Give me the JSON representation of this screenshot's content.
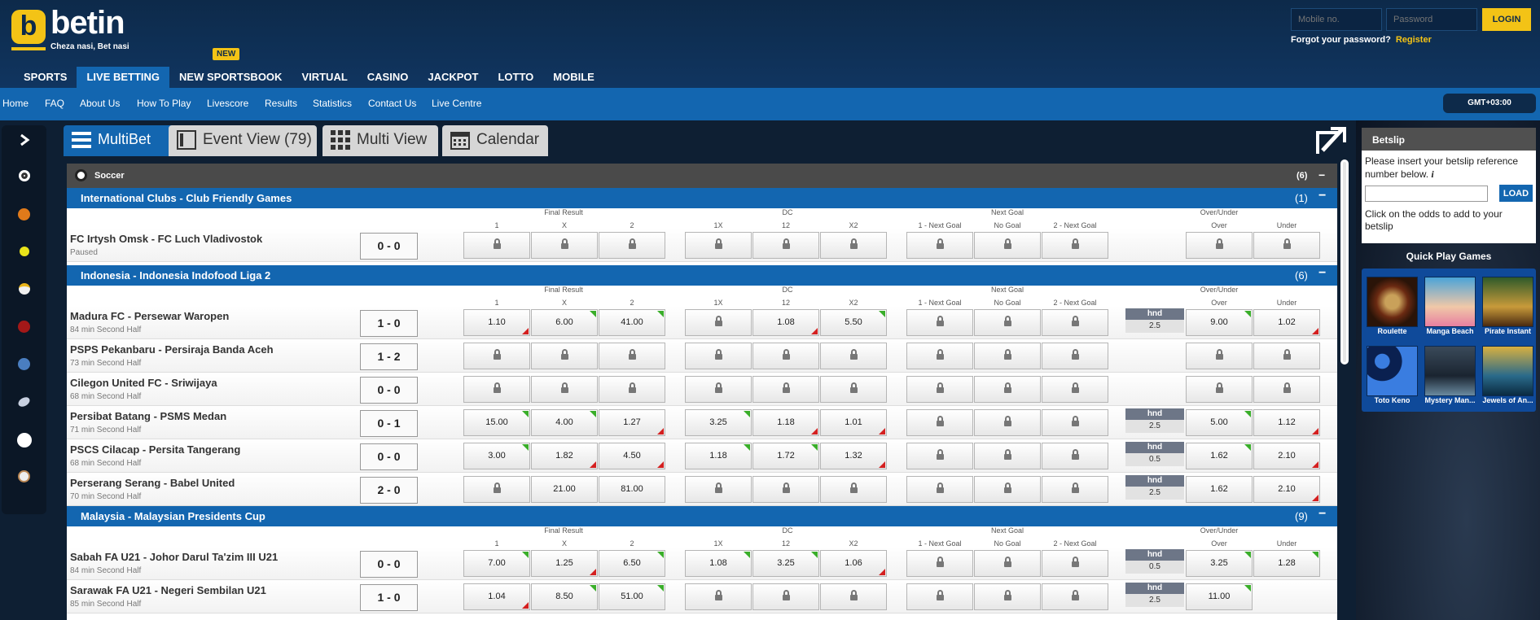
{
  "brand": {
    "name": "betin",
    "tagline": "Cheza nasi, Bet nasi",
    "new_badge": "NEW"
  },
  "main_nav": [
    "SPORTS",
    "LIVE BETTING",
    "NEW SPORTSBOOK",
    "VIRTUAL",
    "CASINO",
    "JACKPOT",
    "LOTTO",
    "MOBILE"
  ],
  "main_nav_active": "LIVE BETTING",
  "login": {
    "mobile_placeholder": "Mobile no.",
    "password_placeholder": "Password",
    "login_label": "LOGIN",
    "forgot": "Forgot your password?",
    "register": "Register"
  },
  "sub_nav": [
    "Home",
    "FAQ",
    "About Us",
    "How To Play",
    "Livescore",
    "Results",
    "Statistics",
    "Contact Us",
    "Live Centre"
  ],
  "timezone": "GMT+03:00",
  "tabs": [
    {
      "label": "MultiBet",
      "icon": "list-icon"
    },
    {
      "label": "Event View (79)",
      "icon": "panel-icon"
    },
    {
      "label": "Multi View",
      "icon": "grid-icon"
    },
    {
      "label": "Calendar",
      "icon": "calendar-icon"
    }
  ],
  "sidebar_sports": [
    "chevron-right-icon",
    "soccer-icon",
    "basketball-icon",
    "tennis-icon",
    "volleyball-icon",
    "cricket-icon",
    "handball-icon",
    "rugby-icon",
    "table-tennis-icon",
    "baseball-icon"
  ],
  "sport": {
    "name": "Soccer",
    "count": "(6)",
    "collapse": "−"
  },
  "market_headers": {
    "final_result": "Final Result",
    "dc": "DC",
    "next_goal": "Next Goal",
    "over_under": "Over/Under"
  },
  "selections": [
    "1",
    "X",
    "2",
    "1X",
    "12",
    "X2",
    "1 - Next Goal",
    "No Goal",
    "2 - Next Goal",
    "Over",
    "Under"
  ],
  "hnd_label": "hnd",
  "leagues": [
    {
      "title": "International Clubs - Club Friendly Games",
      "count": "(1)",
      "matches": [
        {
          "teams": "FC Irtysh Omsk - FC Luch Vladivostok",
          "status": "Paused",
          "score": "0 - 0",
          "odds": [
            "",
            "",
            "",
            "",
            "",
            "",
            "",
            "",
            "",
            "",
            ""
          ],
          "hnd": null
        }
      ]
    },
    {
      "title": "Indonesia - Indonesia Indofood Liga 2",
      "count": "(6)",
      "matches": [
        {
          "teams": "Madura FC - Persewar Waropen",
          "status": "84 min Second Half",
          "score": "1 - 0",
          "odds": [
            "1.10",
            "6.00",
            "41.00",
            "",
            "1.08",
            "5.50",
            "",
            "",
            "",
            "9.00",
            "1.02"
          ],
          "moves": [
            "dn",
            "up",
            "up",
            "",
            "dn",
            "up",
            "",
            "",
            "",
            "up",
            "dn"
          ],
          "hnd": "2.5"
        },
        {
          "teams": "PSPS Pekanbaru - Persiraja Banda Aceh",
          "status": "73 min Second Half",
          "score": "1 - 2",
          "odds": [
            "",
            "",
            "",
            "",
            "",
            "",
            "",
            "",
            "",
            "",
            ""
          ],
          "hnd": null
        },
        {
          "teams": "Cilegon United FC - Sriwijaya",
          "status": "68 min Second Half",
          "score": "0 - 0",
          "odds": [
            "",
            "",
            "",
            "",
            "",
            "",
            "",
            "",
            "",
            "",
            ""
          ],
          "hnd": null
        },
        {
          "teams": "Persibat Batang - PSMS Medan",
          "status": "71 min Second Half",
          "score": "0 - 1",
          "odds": [
            "15.00",
            "4.00",
            "1.27",
            "3.25",
            "1.18",
            "1.01",
            "",
            "",
            "",
            "5.00",
            "1.12"
          ],
          "moves": [
            "up",
            "up",
            "dn",
            "up",
            "dn",
            "dn",
            "",
            "",
            "",
            "up",
            "dn"
          ],
          "hnd": "2.5"
        },
        {
          "teams": "PSCS Cilacap - Persita Tangerang",
          "status": "68 min Second Half",
          "score": "0 - 0",
          "odds": [
            "3.00",
            "1.82",
            "4.50",
            "1.18",
            "1.72",
            "1.32",
            "",
            "",
            "",
            "1.62",
            "2.10"
          ],
          "moves": [
            "up",
            "dn",
            "dn",
            "up",
            "up",
            "dn",
            "",
            "",
            "",
            "up",
            "dn"
          ],
          "hnd": "0.5"
        },
        {
          "teams": "Perserang Serang - Babel United",
          "status": "70 min Second Half",
          "score": "2 - 0",
          "odds": [
            "",
            "21.00",
            "81.00",
            "",
            "",
            "",
            "",
            "",
            "",
            "1.62",
            "2.10"
          ],
          "moves": [
            "",
            "",
            "",
            "",
            "",
            "",
            "",
            "",
            "",
            "",
            "dn"
          ],
          "hnd": "2.5"
        }
      ]
    },
    {
      "title": "Malaysia - Malaysian Presidents Cup",
      "count": "(9)",
      "matches": [
        {
          "teams": "Sabah FA U21 - Johor Darul Ta'zim III U21",
          "status": "84 min Second Half",
          "score": "0 - 0",
          "odds": [
            "7.00",
            "1.25",
            "6.50",
            "1.08",
            "3.25",
            "1.06",
            "",
            "",
            "",
            "3.25",
            "1.28"
          ],
          "moves": [
            "up",
            "dn",
            "up",
            "up",
            "up",
            "dn",
            "",
            "",
            "",
            "up",
            "up"
          ],
          "hnd": "0.5"
        },
        {
          "teams": "Sarawak FA U21 - Negeri Sembilan U21",
          "status": "85 min Second Half",
          "score": "1 - 0",
          "odds": [
            "1.04",
            "8.50",
            "51.00",
            "",
            "",
            "",
            "",
            "",
            "",
            "11.00",
            null
          ],
          "moves": [
            "dn",
            "up",
            "up",
            "",
            "",
            "",
            "",
            "",
            "",
            "up",
            ""
          ],
          "hnd": "2.5"
        }
      ]
    }
  ],
  "betslip": {
    "title": "Betslip",
    "insert_text": "Please insert your betslip reference number below.",
    "info": "i",
    "load_label": "LOAD",
    "click_text": "Click on the odds to add to your betslip"
  },
  "quick_play": {
    "title": "Quick Play Games",
    "games": [
      "Roulette",
      "Manga Beach",
      "Pirate Instant",
      "Toto Keno",
      "Mystery Man...",
      "Jewels of An..."
    ]
  },
  "colors": {
    "nav_blue": "#1366b0",
    "header_navy": "#0d2a4a",
    "brand_yellow": "#f3c316",
    "odds_up": "#3aae2a",
    "odds_down": "#d42020"
  }
}
